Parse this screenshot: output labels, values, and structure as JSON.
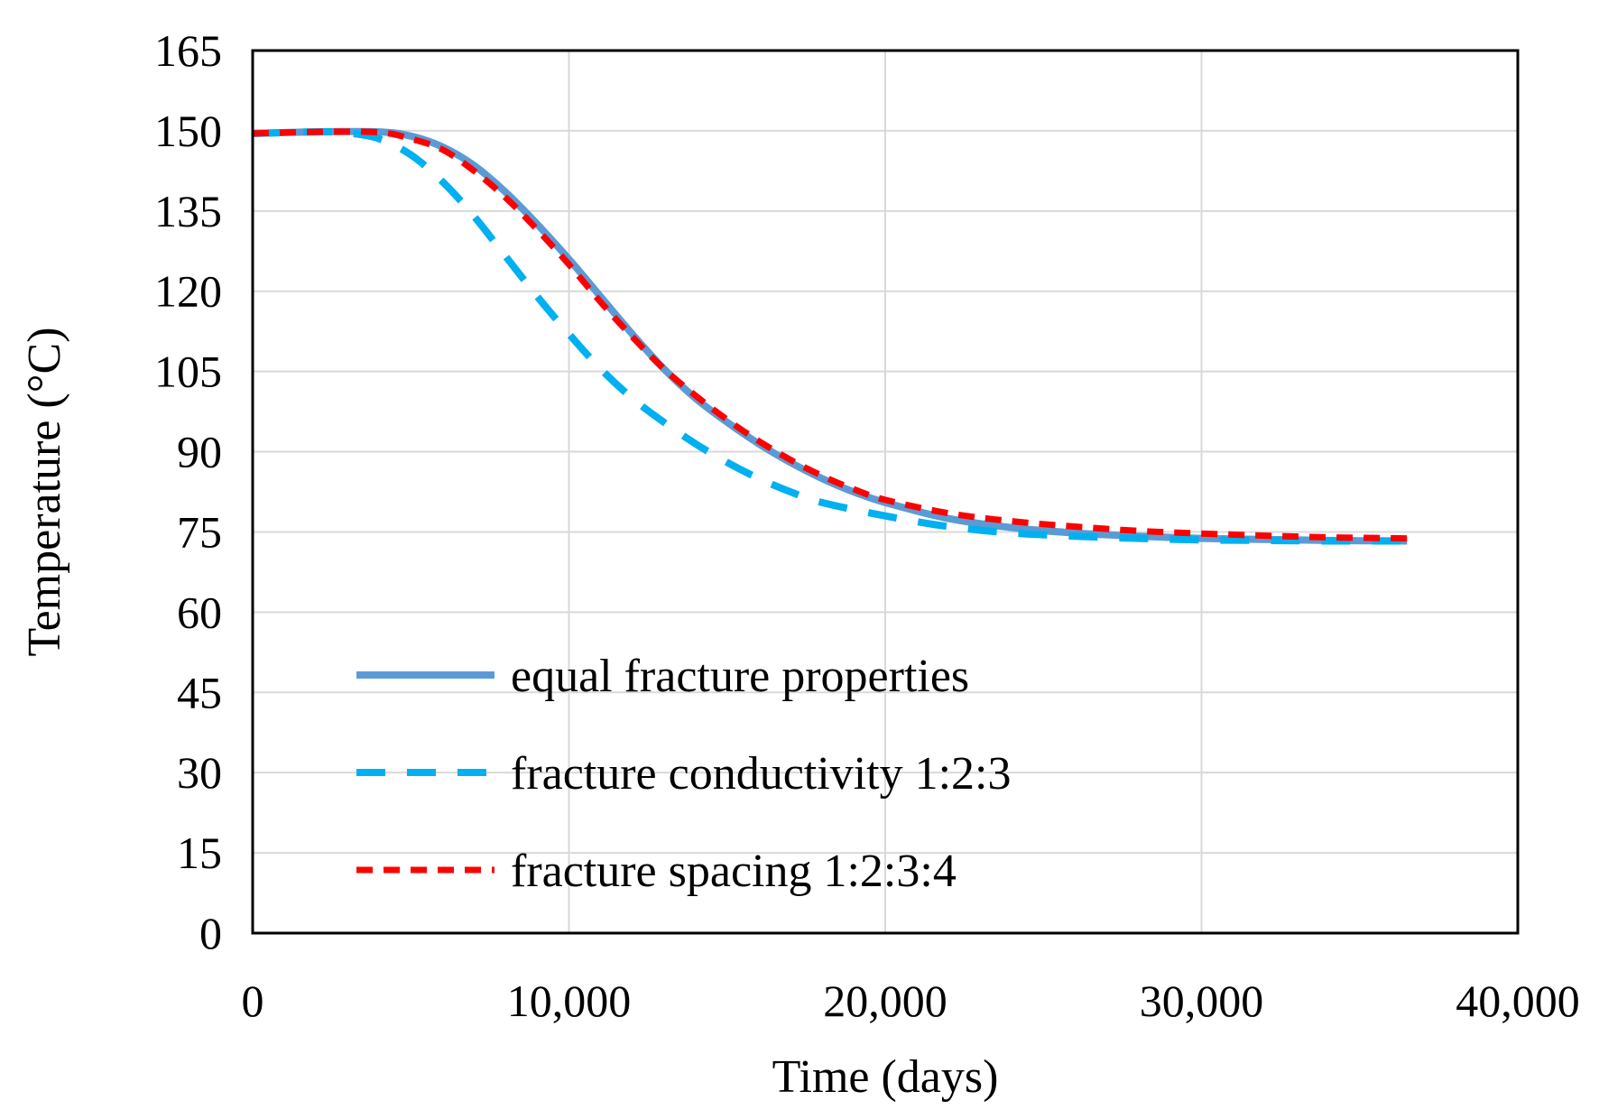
{
  "chart_data": {
    "type": "line",
    "title": "",
    "xlabel": "Time (days)",
    "ylabel": "Temperature (°C)",
    "xlim": [
      0,
      40000
    ],
    "ylim": [
      0,
      165
    ],
    "x_ticks": [
      0,
      10000,
      20000,
      30000,
      40000
    ],
    "x_tick_labels": [
      "0",
      "10,000",
      "20,000",
      "30,000",
      "40,000"
    ],
    "y_ticks": [
      0,
      15,
      30,
      45,
      60,
      75,
      90,
      105,
      120,
      135,
      150,
      165
    ],
    "y_tick_labels": [
      "0",
      "15",
      "30",
      "45",
      "60",
      "75",
      "90",
      "105",
      "120",
      "135",
      "150",
      "165"
    ],
    "grid": true,
    "legend_position": "lower-left",
    "series": [
      {
        "name": "equal fracture properties",
        "color": "#5B9BD5",
        "style": "solid",
        "x": [
          0,
          2000,
          4000,
          5000,
          6000,
          7000,
          8000,
          9000,
          10000,
          11000,
          12000,
          13000,
          14000,
          15000,
          16000,
          17000,
          18000,
          19000,
          20000,
          22000,
          24000,
          26000,
          28000,
          30000,
          32000,
          34000,
          36500
        ],
        "y": [
          149.5,
          149.8,
          149.8,
          149.0,
          147.0,
          143.5,
          138.5,
          132.5,
          126.0,
          119.0,
          112.0,
          105.5,
          100.0,
          95.5,
          91.5,
          88.0,
          85.0,
          82.5,
          80.5,
          77.5,
          75.8,
          74.8,
          74.2,
          73.8,
          73.6,
          73.4,
          73.3
        ]
      },
      {
        "name": "fracture conductivity 1:2:3",
        "color": "#00B0F0",
        "style": "dashed",
        "x": [
          0,
          2000,
          3000,
          4000,
          5000,
          6000,
          7000,
          8000,
          9000,
          10000,
          11000,
          12000,
          13000,
          14000,
          15000,
          16000,
          17000,
          18000,
          20000,
          22000,
          24000,
          26000,
          28000,
          30000,
          32000,
          34000,
          36500
        ],
        "y": [
          149.5,
          149.8,
          149.6,
          148.5,
          145.5,
          140.5,
          134.0,
          126.5,
          119.0,
          112.0,
          105.5,
          100.0,
          95.5,
          91.5,
          88.0,
          85.0,
          82.5,
          80.5,
          78.0,
          76.0,
          74.8,
          74.2,
          73.8,
          73.5,
          73.4,
          73.3,
          73.3
        ]
      },
      {
        "name": "fracture spacing 1:2:3:4",
        "color": "#FF0000",
        "style": "dashed",
        "x": [
          0,
          2000,
          4000,
          5000,
          6000,
          7000,
          8000,
          9000,
          10000,
          11000,
          12000,
          13000,
          14000,
          15000,
          16000,
          17000,
          18000,
          19000,
          20000,
          22000,
          24000,
          26000,
          28000,
          30000,
          32000,
          34000,
          36500
        ],
        "y": [
          149.5,
          149.8,
          149.7,
          148.5,
          146.5,
          142.5,
          137.5,
          131.5,
          125.0,
          118.0,
          111.5,
          105.5,
          100.5,
          96.0,
          92.0,
          88.5,
          85.5,
          83.0,
          81.0,
          78.5,
          77.0,
          76.0,
          75.2,
          74.7,
          74.3,
          74.0,
          73.8
        ]
      }
    ]
  }
}
